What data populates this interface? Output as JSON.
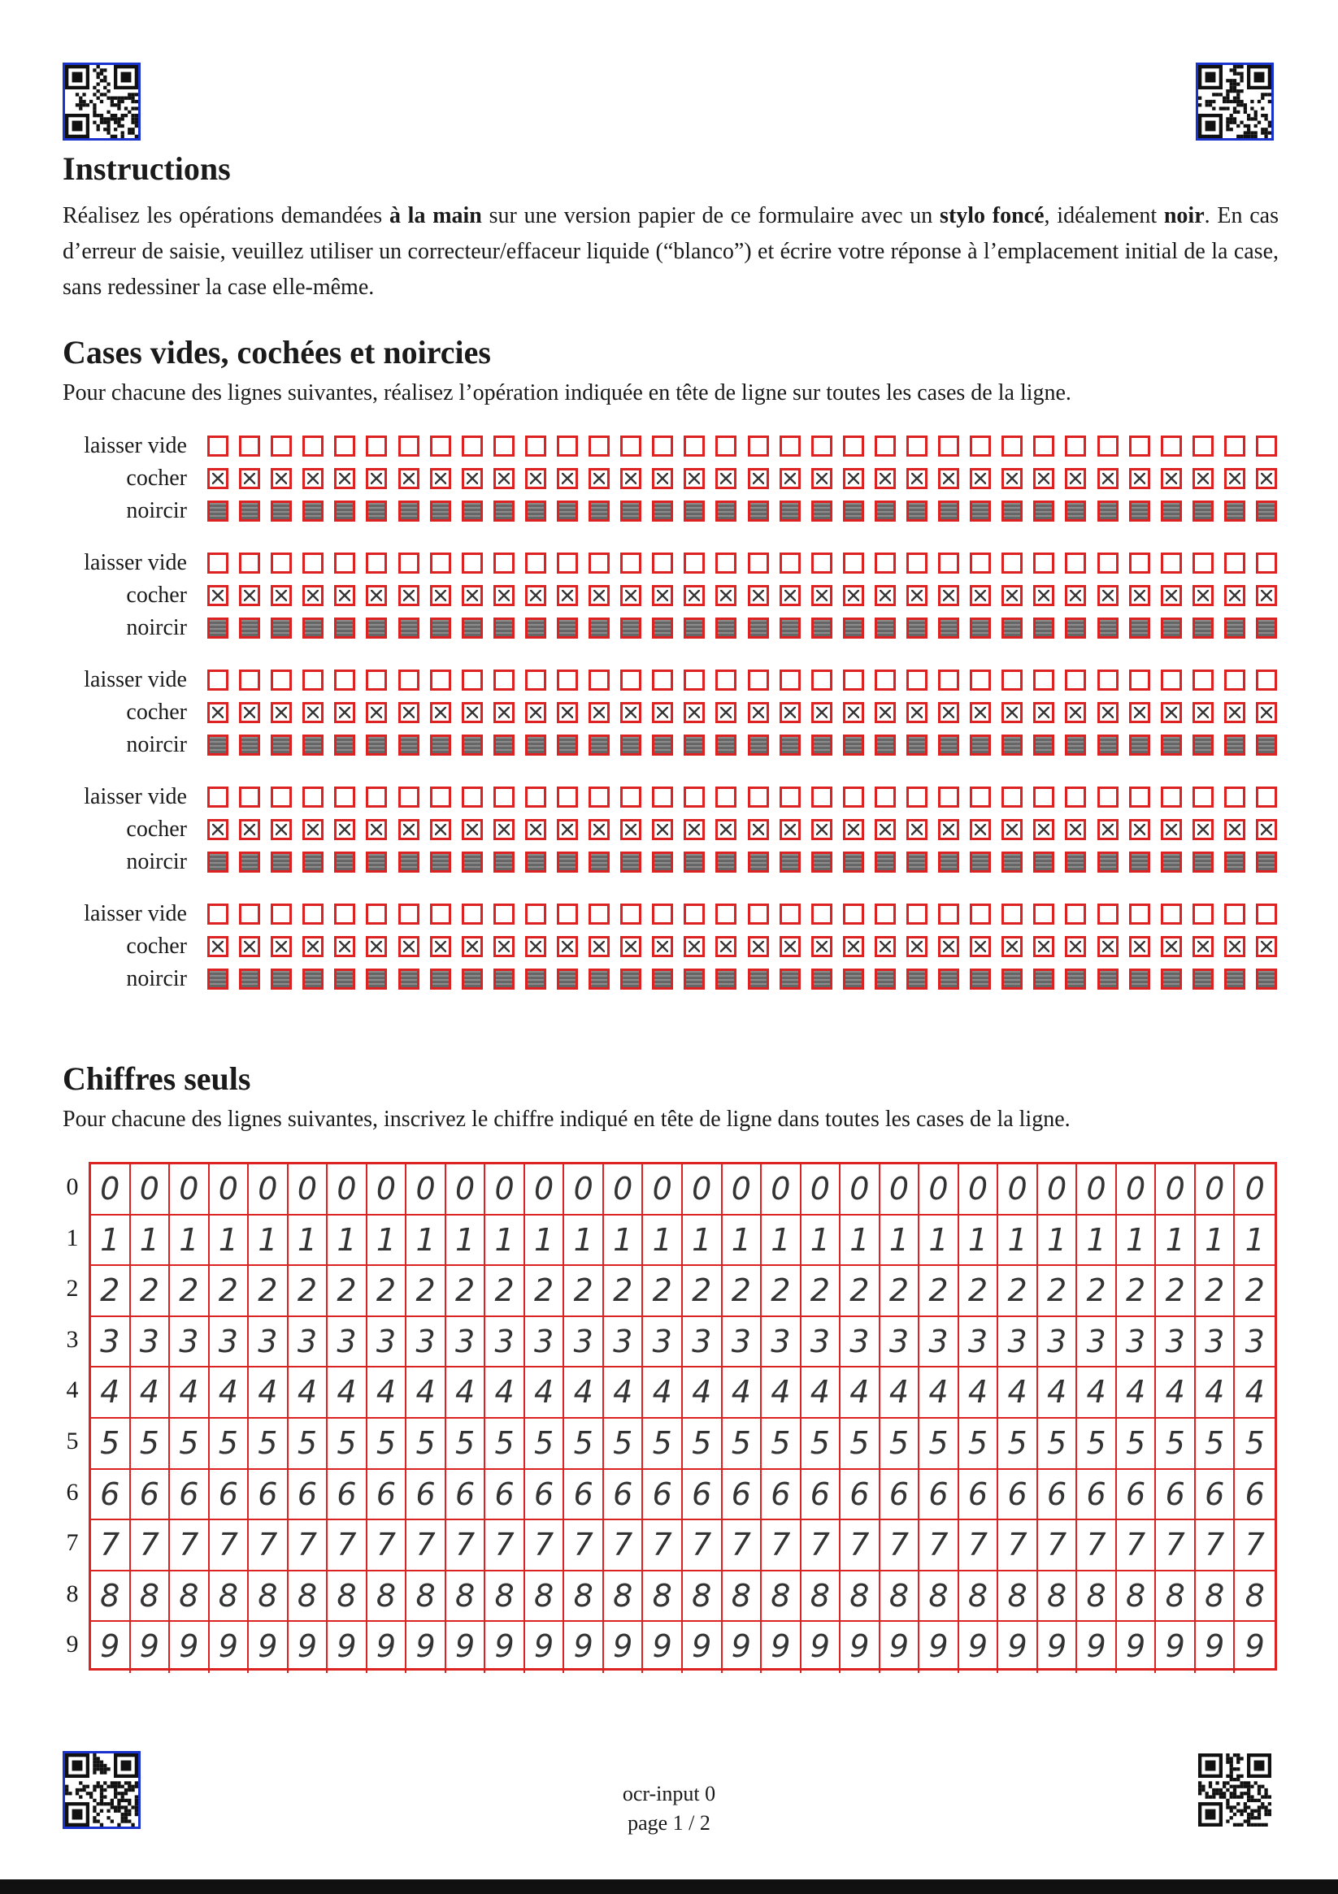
{
  "instructions": {
    "title": "Instructions",
    "p1": "Réalisez les opérations demandées ",
    "p1_bold1": "à la main",
    "p1b": " sur une version papier de ce formulaire avec un ",
    "p1_bold2": "stylo foncé",
    "p1c": ", idéalement ",
    "p1_bold3": "noir",
    "p1d": ". En cas d’erreur de saisie, veuillez utiliser un correcteur/effaceur liquide (“blanco”) et écrire votre réponse à l’emplacement initial de la case, sans redessiner la case elle-même."
  },
  "boxes_section": {
    "title": "Cases vides, cochées et noircies",
    "description": "Pour chacune des lignes suivantes, réalisez l’opération indiquée en tête de ligne sur toutes les cases de la ligne.",
    "row_labels": [
      "laisser vide",
      "cocher",
      "noircir"
    ],
    "group_count": 5,
    "boxes_per_row": 34
  },
  "digits_section": {
    "title": "Chiffres seuls",
    "description": "Pour chacune des lignes suivantes, inscrivez le chiffre indiqué en tête de ligne dans toutes les cases de la ligne.",
    "digits": [
      "0",
      "1",
      "2",
      "3",
      "4",
      "5",
      "6",
      "7",
      "8",
      "9"
    ],
    "cells_per_row": 30
  },
  "footer": {
    "doc_name": "ocr-input 0",
    "page": "page 1 / 2"
  },
  "colors": {
    "box_border": "#dd2222",
    "qr_border": "#1a33cc"
  }
}
